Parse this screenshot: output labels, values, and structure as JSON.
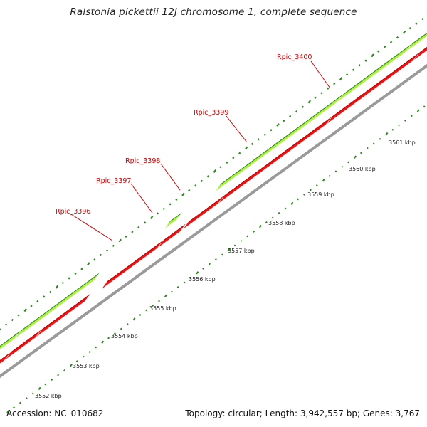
{
  "title": "Ralstonia pickettii 12J chromosome 1, complete sequence",
  "footer": {
    "accession": "Accession: NC_010682",
    "summary": "Topology: circular; Length: 3,942,557 bp; Genes: 3,767"
  },
  "colors": {
    "reverse_gene": "#ee1111",
    "forward_gene_light": "#aaf23a",
    "forward_gene_dark": "#2f8a22",
    "backbone": "#9a9a9a",
    "ticks": "#2a8a1a",
    "label": "#cc0000"
  },
  "scale_labels": [
    "3552 kbp",
    "3553 kbp",
    "3554 kbp",
    "3555 kbp",
    "3556 kbp",
    "3557 kbp",
    "3558 kbp",
    "3559 kbp",
    "3560 kbp",
    "3561 kbp"
  ],
  "gene_labels": [
    "Rpic_3396",
    "Rpic_3397",
    "Rpic_3398",
    "Rpic_3399",
    "Rpic_3400"
  ]
}
